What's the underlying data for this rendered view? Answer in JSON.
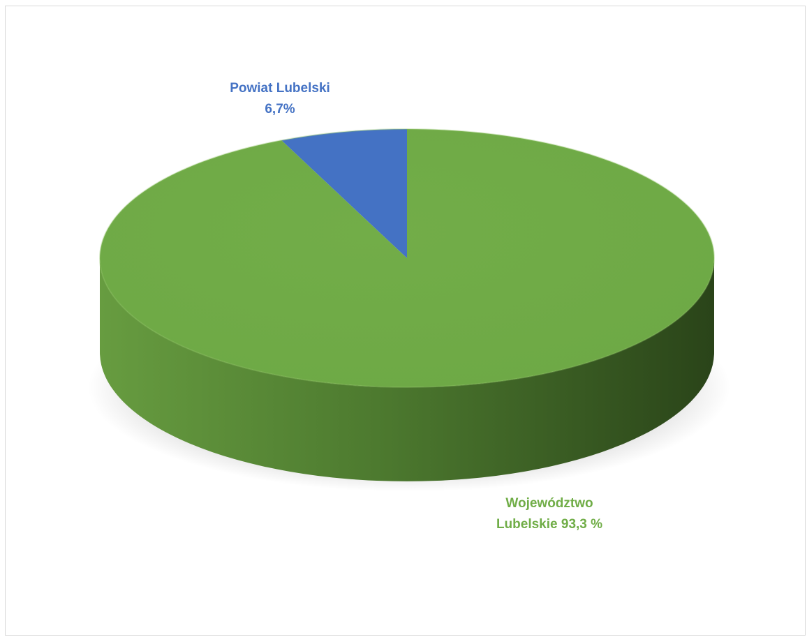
{
  "chart_data": {
    "type": "pie",
    "title": "",
    "slices": [
      {
        "name": "Powiat Lubelski",
        "label_lines": [
          "Powiat Lubelski",
          "6,7%"
        ],
        "value": 6.7,
        "color": "#4472c4"
      },
      {
        "name": "Województwo Lubelskie",
        "label_lines": [
          "Województwo",
          "Lubelskie 93,3 %"
        ],
        "value": 93.3,
        "color": "#70ad47"
      }
    ],
    "style": "3d",
    "legend": "none",
    "data_labels": "outside"
  }
}
